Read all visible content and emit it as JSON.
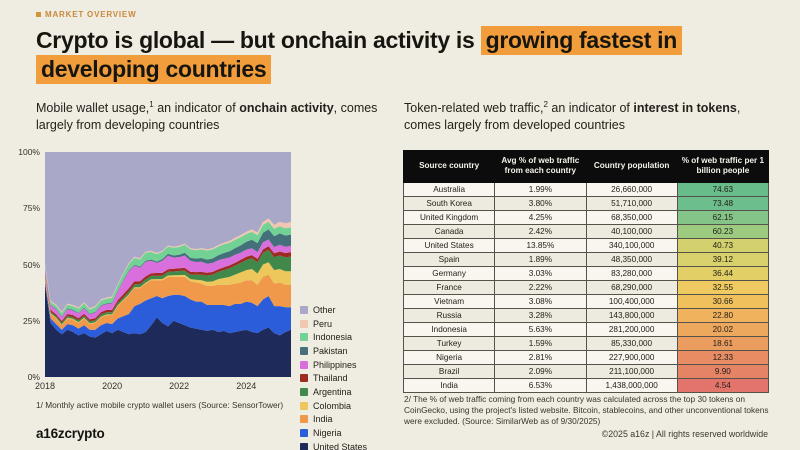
{
  "header": {
    "eyebrow": "MARKET OVERVIEW",
    "title_plain": "Crypto is global — but onchain activity is",
    "title_highlight_1": "growing fastest in",
    "title_highlight_2": "developing countries",
    "accent_color": "#f19d3b"
  },
  "left_panel": {
    "subtitle": {
      "pre": "Mobile wallet usage,",
      "sup": "1",
      "mid": " an indicator of ",
      "bold": "onchain activity",
      "post": ", comes largely from developing countries"
    },
    "footnote": "1/ Monthly active mobile crypto wallet users (Source: SensorTower)"
  },
  "right_panel": {
    "subtitle": {
      "pre": "Token-related web traffic,",
      "sup": "2",
      "mid": " an indicator of ",
      "bold": "interest in tokens",
      "post": ", comes largely from developed countries"
    },
    "footnote": "2/ The % of web traffic coming from each country was calculated across the top 30 tokens on CoinGecko, using the project's listed website. Bitcoin, stablecoins, and other unconventional tokens were excluded. (Source: SimilarWeb as of 9/30/2025)"
  },
  "footer": {
    "logo": "a16zcrypto",
    "copyright": "©2025 a16z | All rights reserved worldwide"
  },
  "chart_data": [
    {
      "type": "area",
      "stacked": true,
      "title": "Share of monthly active mobile crypto wallet users by country",
      "x_start": 2018,
      "x_step_years": 0.166667,
      "x_ticks": [
        2018,
        2020,
        2022,
        2024
      ],
      "y_ticks": [
        "0%",
        "25%",
        "50%",
        "75%",
        "100%"
      ],
      "ylim": [
        0,
        100
      ],
      "grid": false,
      "legend_position": "right",
      "series": [
        {
          "name": "United States",
          "color": "#1e2a5a",
          "values": [
            41,
            24,
            21,
            19,
            21,
            20,
            18.5,
            19.5,
            18,
            17.5,
            19,
            20.5,
            19.5,
            21,
            20,
            19,
            19.5,
            19,
            20,
            23,
            26.5,
            24,
            22.5,
            25,
            24,
            23,
            22,
            21.5,
            21,
            20.5,
            21,
            20,
            20.5,
            19.5,
            20,
            20.5,
            21,
            20,
            19.5,
            21,
            22,
            19.5,
            18.5,
            20,
            21
          ]
        },
        {
          "name": "Nigeria",
          "color": "#2b5cd9",
          "values": [
            1.5,
            2,
            2.5,
            2,
            2.5,
            3,
            3,
            3.5,
            3,
            3.5,
            4,
            3.5,
            4,
            5,
            7,
            9,
            12,
            13.5,
            14,
            12,
            9.5,
            11,
            13.5,
            11.5,
            12.5,
            13,
            12.5,
            12,
            12.5,
            11.5,
            11,
            12,
            11.5,
            12,
            12.5,
            12,
            12.5,
            13,
            12,
            13.5,
            14,
            12,
            13,
            11,
            10
          ]
        },
        {
          "name": "India",
          "color": "#f0994b",
          "values": [
            2,
            2,
            2.5,
            2,
            2.5,
            2.5,
            2.5,
            3,
            2.5,
            3,
            3.5,
            3.5,
            4,
            5.5,
            7,
            8.5,
            8,
            7,
            7.5,
            8,
            7,
            8,
            8.5,
            8,
            8,
            8.5,
            8,
            8.5,
            8,
            8.5,
            8.5,
            9,
            9,
            9.5,
            9,
            9.5,
            9.5,
            10,
            9.5,
            10,
            9.5,
            10,
            10.5,
            10,
            10
          ]
        },
        {
          "name": "Colombia",
          "color": "#edc75c",
          "values": [
            0.3,
            0.3,
            0.3,
            0.3,
            0.3,
            0.3,
            0.3,
            0.3,
            0.3,
            0.3,
            0.3,
            0.3,
            0.3,
            0.3,
            0.3,
            0.3,
            0.35,
            0.4,
            0.4,
            0.45,
            0.5,
            0.55,
            0.6,
            0.7,
            0.8,
            0.9,
            1,
            1.2,
            1.5,
            1.8,
            2,
            2.5,
            3,
            3.5,
            4,
            4.5,
            4.5,
            5,
            5,
            5.5,
            5.5,
            6,
            6,
            6,
            6
          ]
        },
        {
          "name": "Argentina",
          "color": "#41894a",
          "values": [
            0.7,
            0.7,
            0.7,
            0.8,
            0.8,
            0.8,
            0.9,
            0.9,
            0.9,
            0.9,
            1,
            1,
            1,
            1.1,
            1.1,
            1.2,
            1.3,
            1.4,
            1.5,
            1.5,
            1.5,
            1.5,
            1.6,
            1.7,
            1.8,
            1.9,
            2,
            2.2,
            2.5,
            2.8,
            3,
            3.2,
            3.5,
            3.8,
            4,
            4.2,
            4.5,
            4.8,
            5,
            5.2,
            5.5,
            5.8,
            6,
            6.2,
            6.5
          ]
        },
        {
          "name": "Thailand",
          "color": "#9e2b22",
          "values": [
            0.8,
            0.8,
            0.8,
            0.8,
            0.9,
            0.9,
            0.9,
            0.9,
            0.9,
            1,
            1,
            1,
            1,
            1.2,
            1.4,
            1.5,
            1.4,
            1.3,
            1.3,
            1.2,
            1.2,
            1.2,
            1.2,
            1.2,
            1.2,
            1.2,
            1.2,
            1.2,
            1.2,
            1.2,
            1.2,
            1.2,
            1.3,
            1.3,
            1.3,
            1.4,
            1.4,
            1.4,
            1.5,
            1.5,
            1.6,
            1.7,
            1.8,
            1.9,
            2
          ]
        },
        {
          "name": "Philippines",
          "color": "#d86fdd",
          "values": [
            1.8,
            2,
            2.2,
            1.8,
            2.2,
            2,
            2.2,
            2.5,
            2.2,
            2.5,
            2.8,
            2.6,
            3,
            4,
            6,
            7.5,
            7,
            6,
            6.5,
            5.5,
            4.5,
            5.5,
            6,
            5,
            5,
            5.5,
            5,
            4.5,
            4.5,
            4,
            4,
            4,
            3.8,
            3.5,
            3.5,
            3.2,
            3.2,
            3,
            3,
            3.2,
            3,
            2.8,
            3,
            2.8,
            2.8
          ]
        },
        {
          "name": "Pakistan",
          "color": "#44707c",
          "values": [
            0.3,
            0.3,
            0.3,
            0.3,
            0.3,
            0.3,
            0.3,
            0.3,
            0.3,
            0.3,
            0.3,
            0.3,
            0.3,
            0.3,
            0.35,
            0.4,
            0.4,
            0.45,
            0.5,
            0.55,
            0.6,
            0.7,
            0.8,
            0.9,
            1,
            1.2,
            1.3,
            1.5,
            1.7,
            1.9,
            2,
            2.2,
            2.5,
            2.8,
            3,
            3.2,
            3.5,
            3.8,
            4,
            4.2,
            4.5,
            4.8,
            5,
            5,
            5
          ]
        },
        {
          "name": "Indonesia",
          "color": "#72d195",
          "values": [
            1.3,
            1.3,
            1.4,
            1.5,
            1.6,
            1.7,
            1.8,
            1.8,
            1.9,
            2,
            2.1,
            2.1,
            2.2,
            2.4,
            2.5,
            2.8,
            3,
            3.2,
            3.5,
            3.4,
            3.3,
            3.2,
            3.3,
            3.4,
            3.5,
            3.6,
            3.7,
            3.8,
            3.9,
            4,
            4,
            3.9,
            3.9,
            3.8,
            3.7,
            3.6,
            3.5,
            3.5,
            3.5,
            3.5,
            3.4,
            3.3,
            3.2,
            3.2,
            3.2
          ]
        },
        {
          "name": "Peru",
          "color": "#f2c7b1",
          "values": [
            0.6,
            0.5,
            0.5,
            0.5,
            0.5,
            0.5,
            0.5,
            0.5,
            0.5,
            0.5,
            0.5,
            0.5,
            0.5,
            0.5,
            0.5,
            0.5,
            0.5,
            0.5,
            0.5,
            0.5,
            0.5,
            0.5,
            0.5,
            0.5,
            0.5,
            0.5,
            0.5,
            0.5,
            0.5,
            0.55,
            0.6,
            0.65,
            0.7,
            0.8,
            0.9,
            1,
            1,
            1.1,
            1.2,
            1.3,
            1.5,
            1.7,
            2,
            2.2,
            2.4
          ]
        },
        {
          "name": "Other",
          "color": "#a9a8c8",
          "values": "remainder"
        }
      ]
    },
    {
      "type": "table",
      "headers": [
        "Source country",
        "Avg % of web traffic from each country",
        "Country population",
        "% of web traffic per 1 billion people"
      ],
      "rows": [
        {
          "country": "Australia",
          "traffic": "1.99%",
          "population": "26,660,000",
          "score": "74.63",
          "color": "#68bc8a"
        },
        {
          "country": "South Korea",
          "traffic": "3.80%",
          "population": "51,710,000",
          "score": "73.48",
          "color": "#6cbe8c"
        },
        {
          "country": "United Kingdom",
          "traffic": "4.25%",
          "population": "68,350,000",
          "score": "62.15",
          "color": "#85c488"
        },
        {
          "country": "Canada",
          "traffic": "2.42%",
          "population": "40,100,000",
          "score": "60.23",
          "color": "#9ccb7f"
        },
        {
          "country": "United States",
          "traffic": "13.85%",
          "population": "340,100,000",
          "score": "40.73",
          "color": "#d3d06e"
        },
        {
          "country": "Spain",
          "traffic": "1.89%",
          "population": "48,350,000",
          "score": "39.12",
          "color": "#d9d16b"
        },
        {
          "country": "Germany",
          "traffic": "3.03%",
          "population": "83,280,000",
          "score": "36.44",
          "color": "#e2cf66"
        },
        {
          "country": "France",
          "traffic": "2.22%",
          "population": "68,290,000",
          "score": "32.55",
          "color": "#eeca60"
        },
        {
          "country": "Vietnam",
          "traffic": "3.08%",
          "population": "100,400,000",
          "score": "30.66",
          "color": "#f0c05d"
        },
        {
          "country": "Russia",
          "traffic": "3.28%",
          "population": "143,800,000",
          "score": "22.80",
          "color": "#f0b25c"
        },
        {
          "country": "Indonesia",
          "traffic": "5.63%",
          "population": "281,200,000",
          "score": "20.02",
          "color": "#eda85d"
        },
        {
          "country": "Turkey",
          "traffic": "1.59%",
          "population": "85,330,000",
          "score": "18.61",
          "color": "#eb9d60"
        },
        {
          "country": "Nigeria",
          "traffic": "2.81%",
          "population": "227,900,000",
          "score": "12.33",
          "color": "#e78c63"
        },
        {
          "country": "Brazil",
          "traffic": "2.09%",
          "population": "211,100,000",
          "score": "9.90",
          "color": "#e58365"
        },
        {
          "country": "India",
          "traffic": "6.53%",
          "population": "1,438,000,000",
          "score": "4.54",
          "color": "#e2746b"
        }
      ]
    }
  ]
}
